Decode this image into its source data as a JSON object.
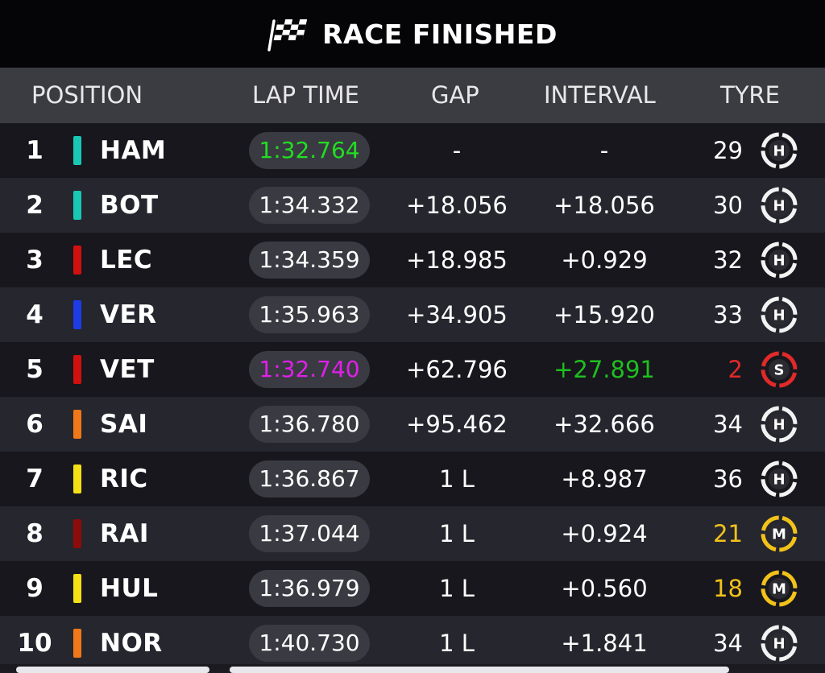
{
  "header": {
    "title": "RACE FINISHED",
    "icon": "checkered-flag-icon"
  },
  "columns": {
    "position": "POSITION",
    "lap_time": "LAP TIME",
    "gap": "GAP",
    "interval": "INTERVAL",
    "tyre": "TYRE"
  },
  "colors": {
    "green_time": "#22dd22",
    "purple_time": "#e020e8",
    "interval_green": "#1fbf1f",
    "soft_red": "#e02a2a",
    "medium_yellow": "#f2c21a",
    "hard_white": "#f2f2f2"
  },
  "rows": [
    {
      "pos": "1",
      "driver": "HAM",
      "team_color": "#19c8b4",
      "lap_time": "1:32.764",
      "lap_time_color": "#22dd22",
      "gap": "-",
      "interval": "-",
      "interval_color": "#ffffff",
      "laps": "29",
      "laps_color": "#ffffff",
      "tyre": "H",
      "tyre_color": "#f2f2f2"
    },
    {
      "pos": "2",
      "driver": "BOT",
      "team_color": "#19c8b4",
      "lap_time": "1:34.332",
      "lap_time_color": "#ffffff",
      "gap": "+18.056",
      "interval": "+18.056",
      "interval_color": "#ffffff",
      "laps": "30",
      "laps_color": "#ffffff",
      "tyre": "H",
      "tyre_color": "#f2f2f2"
    },
    {
      "pos": "3",
      "driver": "LEC",
      "team_color": "#d11010",
      "lap_time": "1:34.359",
      "lap_time_color": "#ffffff",
      "gap": "+18.985",
      "interval": "+0.929",
      "interval_color": "#ffffff",
      "laps": "32",
      "laps_color": "#ffffff",
      "tyre": "H",
      "tyre_color": "#f2f2f2"
    },
    {
      "pos": "4",
      "driver": "VER",
      "team_color": "#1e3ce6",
      "lap_time": "1:35.963",
      "lap_time_color": "#ffffff",
      "gap": "+34.905",
      "interval": "+15.920",
      "interval_color": "#ffffff",
      "laps": "33",
      "laps_color": "#ffffff",
      "tyre": "H",
      "tyre_color": "#f2f2f2"
    },
    {
      "pos": "5",
      "driver": "VET",
      "team_color": "#d11010",
      "lap_time": "1:32.740",
      "lap_time_color": "#e020e8",
      "gap": "+62.796",
      "interval": "+27.891",
      "interval_color": "#1fbf1f",
      "laps": "2",
      "laps_color": "#e02a2a",
      "tyre": "S",
      "tyre_color": "#e02a2a"
    },
    {
      "pos": "6",
      "driver": "SAI",
      "team_color": "#f07818",
      "lap_time": "1:36.780",
      "lap_time_color": "#ffffff",
      "gap": "+95.462",
      "interval": "+32.666",
      "interval_color": "#ffffff",
      "laps": "34",
      "laps_color": "#ffffff",
      "tyre": "H",
      "tyre_color": "#f2f2f2"
    },
    {
      "pos": "7",
      "driver": "RIC",
      "team_color": "#f5e018",
      "lap_time": "1:36.867",
      "lap_time_color": "#ffffff",
      "gap": "1 L",
      "interval": "+8.987",
      "interval_color": "#ffffff",
      "laps": "36",
      "laps_color": "#ffffff",
      "tyre": "H",
      "tyre_color": "#f2f2f2"
    },
    {
      "pos": "8",
      "driver": "RAI",
      "team_color": "#8c0c0c",
      "lap_time": "1:37.044",
      "lap_time_color": "#ffffff",
      "gap": "1 L",
      "interval": "+0.924",
      "interval_color": "#ffffff",
      "laps": "21",
      "laps_color": "#f2c21a",
      "tyre": "M",
      "tyre_color": "#f2c21a"
    },
    {
      "pos": "9",
      "driver": "HUL",
      "team_color": "#f5e018",
      "lap_time": "1:36.979",
      "lap_time_color": "#ffffff",
      "gap": "1 L",
      "interval": "+0.560",
      "interval_color": "#ffffff",
      "laps": "18",
      "laps_color": "#f2c21a",
      "tyre": "M",
      "tyre_color": "#f2c21a"
    },
    {
      "pos": "10",
      "driver": "NOR",
      "team_color": "#f07818",
      "lap_time": "1:40.730",
      "lap_time_color": "#ffffff",
      "gap": "1 L",
      "interval": "+1.841",
      "interval_color": "#ffffff",
      "laps": "34",
      "laps_color": "#ffffff",
      "tyre": "H",
      "tyre_color": "#f2f2f2"
    }
  ]
}
